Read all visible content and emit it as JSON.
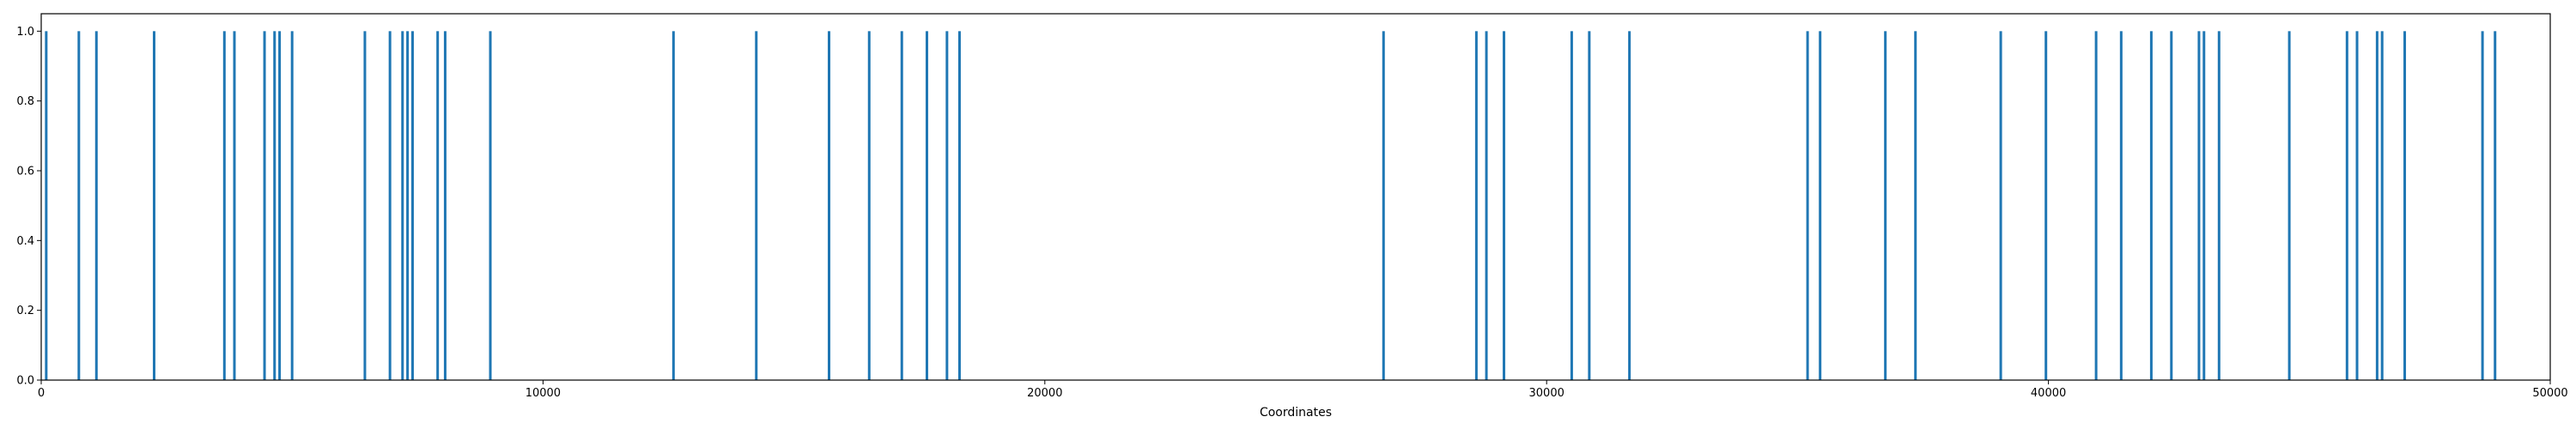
{
  "chart_data": {
    "type": "bar",
    "title": "",
    "xlabel": "Coordinates",
    "ylabel": "",
    "xlim": [
      0,
      50000
    ],
    "ylim": [
      0,
      1.05
    ],
    "grid": false,
    "bar_color": "#1f77b4",
    "x_ticks": [
      "0",
      "10000",
      "20000",
      "30000",
      "40000",
      "50000"
    ],
    "x_tick_values": [
      0,
      10000,
      20000,
      30000,
      40000,
      50000
    ],
    "y_ticks": [
      "0.0",
      "0.2",
      "0.4",
      "0.6",
      "0.8",
      "1.0"
    ],
    "y_tick_values": [
      0.0,
      0.2,
      0.4,
      0.6,
      0.8,
      1.0
    ],
    "x": [
      100,
      750,
      1100,
      2250,
      3650,
      3850,
      4450,
      4650,
      4750,
      5000,
      6450,
      6950,
      7200,
      7300,
      7400,
      7900,
      8050,
      8950,
      12600,
      14250,
      15700,
      16500,
      17150,
      17650,
      18050,
      18300,
      26750,
      28600,
      28800,
      29150,
      30500,
      30850,
      31650,
      35200,
      35450,
      36750,
      37350,
      39050,
      39950,
      40950,
      41450,
      42050,
      42450,
      43000,
      43100,
      43400,
      44800,
      45950,
      46150,
      46550,
      46650,
      47100,
      48650,
      48900
    ],
    "values": [
      1,
      1,
      1,
      1,
      1,
      1,
      1,
      1,
      1,
      1,
      1,
      1,
      1,
      1,
      1,
      1,
      1,
      1,
      1,
      1,
      1,
      1,
      1,
      1,
      1,
      1,
      1,
      1,
      1,
      1,
      1,
      1,
      1,
      1,
      1,
      1,
      1,
      1,
      1,
      1,
      1,
      1,
      1,
      1,
      1,
      1,
      1,
      1,
      1,
      1,
      1,
      1,
      1,
      1
    ]
  }
}
